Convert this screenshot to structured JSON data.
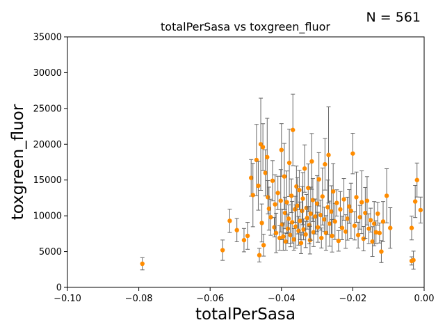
{
  "chart_data": {
    "type": "scatter",
    "title": "totalPerSasa vs toxgreen_fluor",
    "xlabel": "totalPerSasa",
    "ylabel": "toxgreen_fluor",
    "annotation": "N = 561",
    "xlim": [
      -0.1,
      0.0
    ],
    "ylim": [
      0,
      35000
    ],
    "xticks": [
      -0.1,
      -0.08,
      -0.06,
      -0.04,
      -0.02,
      0.0
    ],
    "xtick_labels": [
      "−0.10",
      "−0.08",
      "−0.06",
      "−0.04",
      "−0.02",
      "0.00"
    ],
    "yticks": [
      0,
      5000,
      10000,
      15000,
      20000,
      25000,
      30000,
      35000
    ],
    "ytick_labels": [
      "0",
      "5000",
      "10000",
      "15000",
      "20000",
      "25000",
      "30000",
      "35000"
    ],
    "grid": false,
    "legend": null,
    "colors": {
      "marker": "#ff8c00",
      "errorbar": "#666666"
    },
    "n_points": 561,
    "series": [
      {
        "x": [
          -0.079,
          -0.0565,
          -0.0545,
          -0.0525,
          -0.0505,
          -0.0495,
          -0.0485,
          -0.048,
          -0.047,
          -0.0465,
          -0.0462,
          -0.0458,
          -0.0455,
          -0.0452,
          -0.045,
          -0.0445,
          -0.044,
          -0.0438,
          -0.0435,
          -0.043,
          -0.0425,
          -0.042,
          -0.0418,
          -0.0415,
          -0.041,
          -0.0405,
          -0.0402,
          -0.04,
          -0.0398,
          -0.0395,
          -0.0392,
          -0.039,
          -0.0388,
          -0.0385,
          -0.0382,
          -0.038,
          -0.0378,
          -0.0375,
          -0.0372,
          -0.037,
          -0.0368,
          -0.0365,
          -0.0362,
          -0.036,
          -0.0358,
          -0.0355,
          -0.0352,
          -0.035,
          -0.0348,
          -0.0345,
          -0.0342,
          -0.034,
          -0.0338,
          -0.0335,
          -0.0332,
          -0.033,
          -0.0328,
          -0.0325,
          -0.0322,
          -0.032,
          -0.0318,
          -0.0315,
          -0.0312,
          -0.031,
          -0.0305,
          -0.03,
          -0.0298,
          -0.0295,
          -0.029,
          -0.0288,
          -0.0285,
          -0.028,
          -0.0278,
          -0.0275,
          -0.027,
          -0.0268,
          -0.0265,
          -0.026,
          -0.0258,
          -0.0255,
          -0.025,
          -0.0245,
          -0.024,
          -0.0235,
          -0.023,
          -0.0225,
          -0.022,
          -0.0215,
          -0.021,
          -0.0205,
          -0.02,
          -0.0195,
          -0.019,
          -0.0185,
          -0.018,
          -0.0175,
          -0.017,
          -0.0165,
          -0.016,
          -0.0155,
          -0.015,
          -0.0145,
          -0.014,
          -0.0135,
          -0.013,
          -0.0125,
          -0.012,
          -0.0115,
          -0.0105,
          -0.0095,
          -0.0035,
          -0.003,
          -0.0025,
          -0.002,
          -0.001,
          -0.0035
        ],
        "y": [
          3300,
          5200,
          9300,
          8000,
          6600,
          7200,
          15300,
          12900,
          17800,
          14200,
          4500,
          20000,
          9000,
          19600,
          5900,
          16000,
          18200,
          12600,
          11000,
          9800,
          14900,
          8400,
          11600,
          7600,
          13200,
          6900,
          12100,
          19200,
          8800,
          7100,
          15500,
          10400,
          6400,
          11900,
          8200,
          9600,
          17400,
          7300,
          12800,
          9100,
          22000,
          6700,
          10900,
          8500,
          14100,
          11400,
          7900,
          13600,
          9300,
          6200,
          10700,
          12400,
          8100,
          16600,
          7400,
          11100,
          9700,
          13900,
          8700,
          6600,
          10300,
          17600,
          12200,
          7700,
          9900,
          11700,
          8400,
          15100,
          10100,
          6900,
          12700,
          9500,
          17200,
          7600,
          11200,
          18500,
          8900,
          10600,
          7200,
          13400,
          9200,
          11800,
          6500,
          10900,
          8300,
          12300,
          7800,
          9600,
          11300,
          10700,
          18700,
          8600,
          12600,
          7300,
          9800,
          11900,
          6800,
          10400,
          12100,
          8200,
          9400,
          6400,
          8900,
          7700,
          10300,
          7600,
          5000,
          9200,
          12800,
          8300,
          8300,
          3800,
          12000,
          15000,
          10800,
          3700
        ]
      }
    ]
  }
}
